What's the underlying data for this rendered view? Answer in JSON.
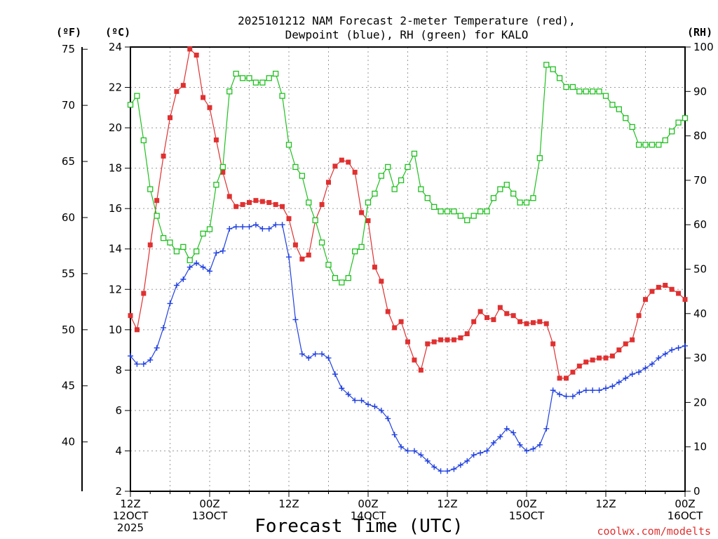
{
  "chart_data": {
    "type": "line",
    "title_line1": "2025101212 NAM Forecast 2-meter Temperature (red),",
    "title_line2": "Dewpoint (blue), RH (green) for KALO",
    "xlabel": "Forecast Time (UTC)",
    "credit": "coolwx.com/modelts",
    "units": {
      "fahrenheit": "(ºF)",
      "celsius": "(ºC)",
      "rh": "(RH)"
    },
    "x_range_hours": [
      0,
      84
    ],
    "ylim_c": [
      2,
      24
    ],
    "ylim_rh": [
      0,
      100
    ],
    "ylim_f": [
      35.6,
      75.2
    ],
    "grid": true,
    "x_ticks": [
      {
        "hour": 0,
        "line1": "12Z",
        "line2": "12OCT",
        "line3": "2025"
      },
      {
        "hour": 12,
        "line1": "00Z",
        "line2": "13OCT",
        "line3": ""
      },
      {
        "hour": 24,
        "line1": "12Z",
        "line2": "",
        "line3": ""
      },
      {
        "hour": 36,
        "line1": "00Z",
        "line2": "14OCT",
        "line3": ""
      },
      {
        "hour": 48,
        "line1": "12Z",
        "line2": "",
        "line3": ""
      },
      {
        "hour": 60,
        "line1": "00Z",
        "line2": "15OCT",
        "line3": ""
      },
      {
        "hour": 72,
        "line1": "12Z",
        "line2": "",
        "line3": ""
      },
      {
        "hour": 84,
        "line1": "00Z",
        "line2": "16OCT",
        "line3": ""
      }
    ],
    "y_ticks_c": [
      2,
      4,
      6,
      8,
      10,
      12,
      14,
      16,
      18,
      20,
      22,
      24
    ],
    "y_ticks_f": [
      40,
      45,
      50,
      55,
      60,
      65,
      70,
      75
    ],
    "y_ticks_rh": [
      0,
      10,
      20,
      30,
      40,
      50,
      60,
      70,
      80,
      90,
      100
    ],
    "series": [
      {
        "key": "temperature",
        "color": "#e03030",
        "marker": "filled-square",
        "axis": "celsius",
        "values": [
          10.7,
          10.0,
          11.8,
          14.2,
          16.4,
          18.6,
          20.5,
          21.8,
          22.1,
          23.9,
          23.6,
          21.5,
          21.0,
          19.4,
          17.8,
          16.6,
          16.1,
          16.2,
          16.3,
          16.4,
          16.35,
          16.3,
          16.2,
          16.1,
          15.5,
          14.2,
          13.5,
          13.7,
          15.4,
          16.2,
          17.3,
          18.1,
          18.4,
          18.3,
          17.8,
          15.8,
          15.4,
          13.1,
          12.4,
          10.9,
          10.1,
          10.4,
          9.4,
          8.5,
          8.0,
          9.3,
          9.4,
          9.5,
          9.5,
          9.5,
          9.6,
          9.8,
          10.4,
          10.9,
          10.6,
          10.5,
          11.1,
          10.8,
          10.7,
          10.4,
          10.3,
          10.35,
          10.4,
          10.3,
          9.3,
          7.6,
          7.6,
          7.9,
          8.2,
          8.4,
          8.5,
          8.6,
          8.6,
          8.7,
          9.0,
          9.3,
          9.5,
          10.7,
          11.5,
          11.9,
          12.1,
          12.2,
          12.0,
          11.8,
          11.5
        ]
      },
      {
        "key": "dewpoint",
        "color": "#2040e0",
        "marker": "plus",
        "axis": "celsius",
        "values": [
          8.7,
          8.3,
          8.3,
          8.5,
          9.1,
          10.1,
          11.3,
          12.2,
          12.5,
          13.1,
          13.3,
          13.1,
          12.9,
          13.8,
          13.9,
          15.0,
          15.1,
          15.1,
          15.1,
          15.2,
          15.0,
          15.0,
          15.2,
          15.2,
          13.6,
          10.5,
          8.8,
          8.6,
          8.8,
          8.8,
          8.6,
          7.8,
          7.1,
          6.8,
          6.5,
          6.5,
          6.3,
          6.2,
          6.0,
          5.6,
          4.8,
          4.2,
          4.0,
          4.0,
          3.8,
          3.5,
          3.2,
          3.0,
          3.0,
          3.1,
          3.3,
          3.5,
          3.8,
          3.9,
          4.0,
          4.4,
          4.7,
          5.1,
          4.9,
          4.3,
          4.0,
          4.1,
          4.3,
          5.1,
          7.0,
          6.8,
          6.7,
          6.7,
          6.9,
          7.0,
          7.0,
          7.0,
          7.1,
          7.2,
          7.4,
          7.6,
          7.8,
          7.9,
          8.1,
          8.3,
          8.6,
          8.8,
          9.0,
          9.1,
          9.2
        ]
      },
      {
        "key": "relative-humidity",
        "color": "#20c020",
        "marker": "open-square",
        "axis": "rh",
        "values": [
          87,
          89,
          79,
          68,
          62,
          57,
          56,
          54,
          55,
          52,
          54,
          58,
          59,
          69,
          73,
          90,
          94,
          93,
          93,
          92,
          92,
          93,
          94,
          89,
          78,
          73,
          71,
          65,
          61,
          56,
          51,
          48,
          47,
          48,
          54,
          55,
          65,
          67,
          71,
          73,
          68,
          70,
          73,
          76,
          68,
          66,
          64,
          63,
          63,
          63,
          62,
          61,
          62,
          63,
          63,
          66,
          68,
          69,
          67,
          65,
          65,
          66,
          75,
          96,
          95,
          93,
          91,
          91,
          90,
          90,
          90,
          90,
          89,
          87,
          86,
          84,
          82,
          78,
          78,
          78,
          78,
          79,
          81,
          83,
          84
        ]
      }
    ]
  }
}
